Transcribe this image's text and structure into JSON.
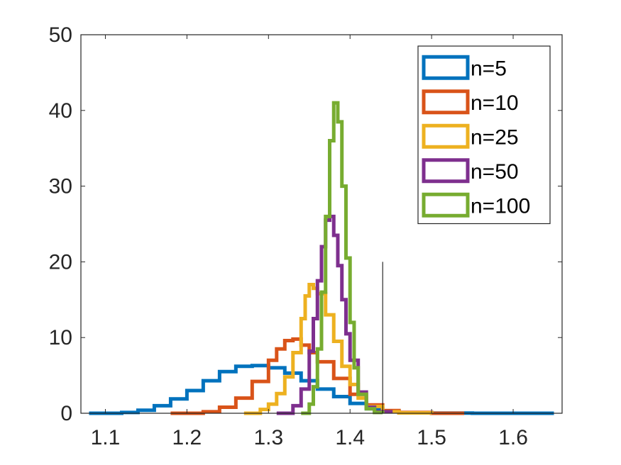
{
  "chart_data": {
    "type": "line",
    "title": "",
    "xlabel": "",
    "ylabel": "",
    "xlim": [
      1.07,
      1.66
    ],
    "ylim": [
      0,
      50
    ],
    "xticks": [
      1.1,
      1.2,
      1.3,
      1.4,
      1.5,
      1.6
    ],
    "xtick_labels": [
      "1.1",
      "1.2",
      "1.3",
      "1.4",
      "1.5",
      "1.6"
    ],
    "yticks": [
      0,
      10,
      20,
      30,
      40,
      50
    ],
    "ytick_labels": [
      "0",
      "10",
      "20",
      "30",
      "40",
      "50"
    ],
    "grid": false,
    "legend_position": "top-right",
    "style": "stairs",
    "series": [
      {
        "name": "n=5",
        "color": "#0072BD",
        "x": [
          1.08,
          1.12,
          1.14,
          1.16,
          1.18,
          1.2,
          1.22,
          1.24,
          1.26,
          1.28,
          1.3,
          1.32,
          1.34,
          1.36,
          1.38,
          1.4,
          1.42,
          1.44,
          1.46,
          1.5,
          1.55,
          1.6,
          1.65
        ],
        "y": [
          0,
          0.1,
          0.4,
          1.0,
          1.9,
          3.0,
          4.3,
          5.5,
          6.2,
          6.3,
          6.0,
          5.3,
          4.3,
          3.2,
          2.2,
          1.3,
          0.6,
          0.25,
          0.08,
          0.02,
          0,
          0,
          0
        ]
      },
      {
        "name": "n=10",
        "color": "#D95319",
        "x": [
          1.18,
          1.22,
          1.24,
          1.26,
          1.28,
          1.3,
          1.31,
          1.32,
          1.33,
          1.34,
          1.35,
          1.36,
          1.38,
          1.4,
          1.42,
          1.44,
          1.46,
          1.5,
          1.54
        ],
        "y": [
          0,
          0.2,
          0.8,
          2.0,
          4.2,
          7.0,
          8.5,
          9.6,
          9.8,
          9.0,
          8.0,
          6.8,
          4.6,
          2.5,
          1.1,
          0.35,
          0.1,
          0,
          0
        ]
      },
      {
        "name": "n=25",
        "color": "#EDB120",
        "x": [
          1.27,
          1.29,
          1.3,
          1.31,
          1.32,
          1.33,
          1.34,
          1.345,
          1.35,
          1.355,
          1.36,
          1.37,
          1.38,
          1.39,
          1.4,
          1.41,
          1.42,
          1.44,
          1.46,
          1.5
        ],
        "y": [
          0,
          0.5,
          1.2,
          2.6,
          4.8,
          8.0,
          12.5,
          15.5,
          17.0,
          16.5,
          15.8,
          13.0,
          9.5,
          6.2,
          3.8,
          2.0,
          0.9,
          0.2,
          0.05,
          0
        ]
      },
      {
        "name": "n=50",
        "color": "#7E2F8E",
        "x": [
          1.31,
          1.33,
          1.34,
          1.35,
          1.355,
          1.36,
          1.365,
          1.37,
          1.375,
          1.38,
          1.385,
          1.39,
          1.395,
          1.4,
          1.41,
          1.42,
          1.43,
          1.45
        ],
        "y": [
          0,
          1.0,
          3.2,
          8.2,
          12.5,
          17.5,
          22.0,
          25.5,
          26.0,
          23.5,
          19.5,
          15.0,
          10.5,
          7.0,
          2.8,
          0.8,
          0.2,
          0
        ]
      },
      {
        "name": "n=100",
        "color": "#77AC30",
        "x": [
          1.34,
          1.35,
          1.355,
          1.36,
          1.365,
          1.37,
          1.375,
          1.38,
          1.385,
          1.39,
          1.395,
          1.4,
          1.405,
          1.41,
          1.42,
          1.43,
          1.44
        ],
        "y": [
          0,
          1.2,
          3.5,
          8.5,
          16.0,
          26.0,
          36.0,
          41.0,
          38.5,
          30.0,
          20.5,
          12.0,
          6.0,
          2.5,
          0.6,
          0.1,
          0
        ]
      }
    ],
    "reference_line": {
      "x": 1.44,
      "y0": 0,
      "y1": 20,
      "color": "#000000"
    }
  }
}
